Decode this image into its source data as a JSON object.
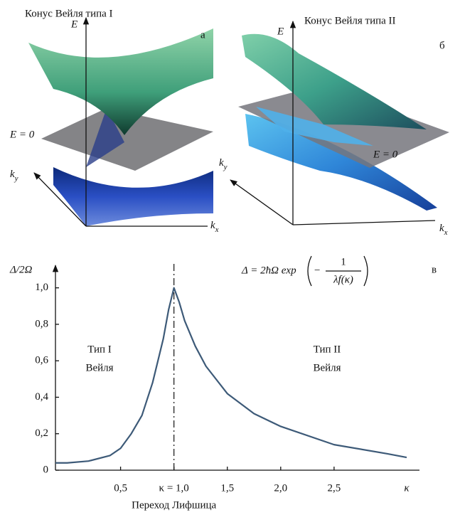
{
  "panels": [
    {
      "title": "Конус Вейля типа I",
      "letter": "а",
      "energy_axis": "E",
      "plane_label": "E = 0",
      "ky": {
        "base": "k",
        "sub": "y"
      },
      "kx": {
        "base": "k",
        "sub": "x"
      }
    },
    {
      "title": "Конус Вейля типа II",
      "letter": "б",
      "energy_axis": "E",
      "plane_label": "E = 0",
      "ky": {
        "base": "k",
        "sub": "y"
      },
      "kx": {
        "base": "k",
        "sub": "x"
      }
    }
  ],
  "chart_data": {
    "type": "line",
    "letter": "в",
    "ylabel": "Δ/2Ω",
    "xlabel": "κ",
    "formula": {
      "lhs": "Δ = 2ħΩ exp",
      "minus": "−",
      "numerator": "1",
      "denominator": "λf(κ)"
    },
    "x": [
      -0.11,
      0,
      0.2,
      0.4,
      0.5,
      0.6,
      0.7,
      0.8,
      0.9,
      0.95,
      1.0,
      1.05,
      1.1,
      1.2,
      1.3,
      1.5,
      1.75,
      2.0,
      2.5,
      3.0,
      3.18
    ],
    "values": [
      0.04,
      0.04,
      0.05,
      0.08,
      0.12,
      0.2,
      0.3,
      0.48,
      0.72,
      0.88,
      1.0,
      0.92,
      0.82,
      0.68,
      0.57,
      0.42,
      0.31,
      0.24,
      0.14,
      0.09,
      0.07
    ],
    "color": "#3d5a78",
    "xlim": [
      -0.11,
      3.3
    ],
    "ylim": [
      0,
      1.1
    ],
    "xticks": [
      {
        "value": 0.5,
        "label": "0,5"
      },
      {
        "value": 1.0,
        "label": "κ = 1,0"
      },
      {
        "value": 1.5,
        "label": "1,5"
      },
      {
        "value": 2.0,
        "label": "2,0"
      },
      {
        "value": 2.5,
        "label": "2,5"
      }
    ],
    "yticks": [
      0,
      {
        "value": 0.2,
        "label": "0,2"
      },
      {
        "value": 0.4,
        "label": "0,4"
      },
      {
        "value": 0.6,
        "label": "0,6"
      },
      {
        "value": 0.8,
        "label": "0,8"
      },
      {
        "value": 1.0,
        "label": "1,0"
      }
    ],
    "vline": 1.0,
    "annotations": [
      "Тип I",
      "Вейля",
      "Тип II",
      "Вейля"
    ],
    "transition_label": "Переход Лифшица"
  }
}
